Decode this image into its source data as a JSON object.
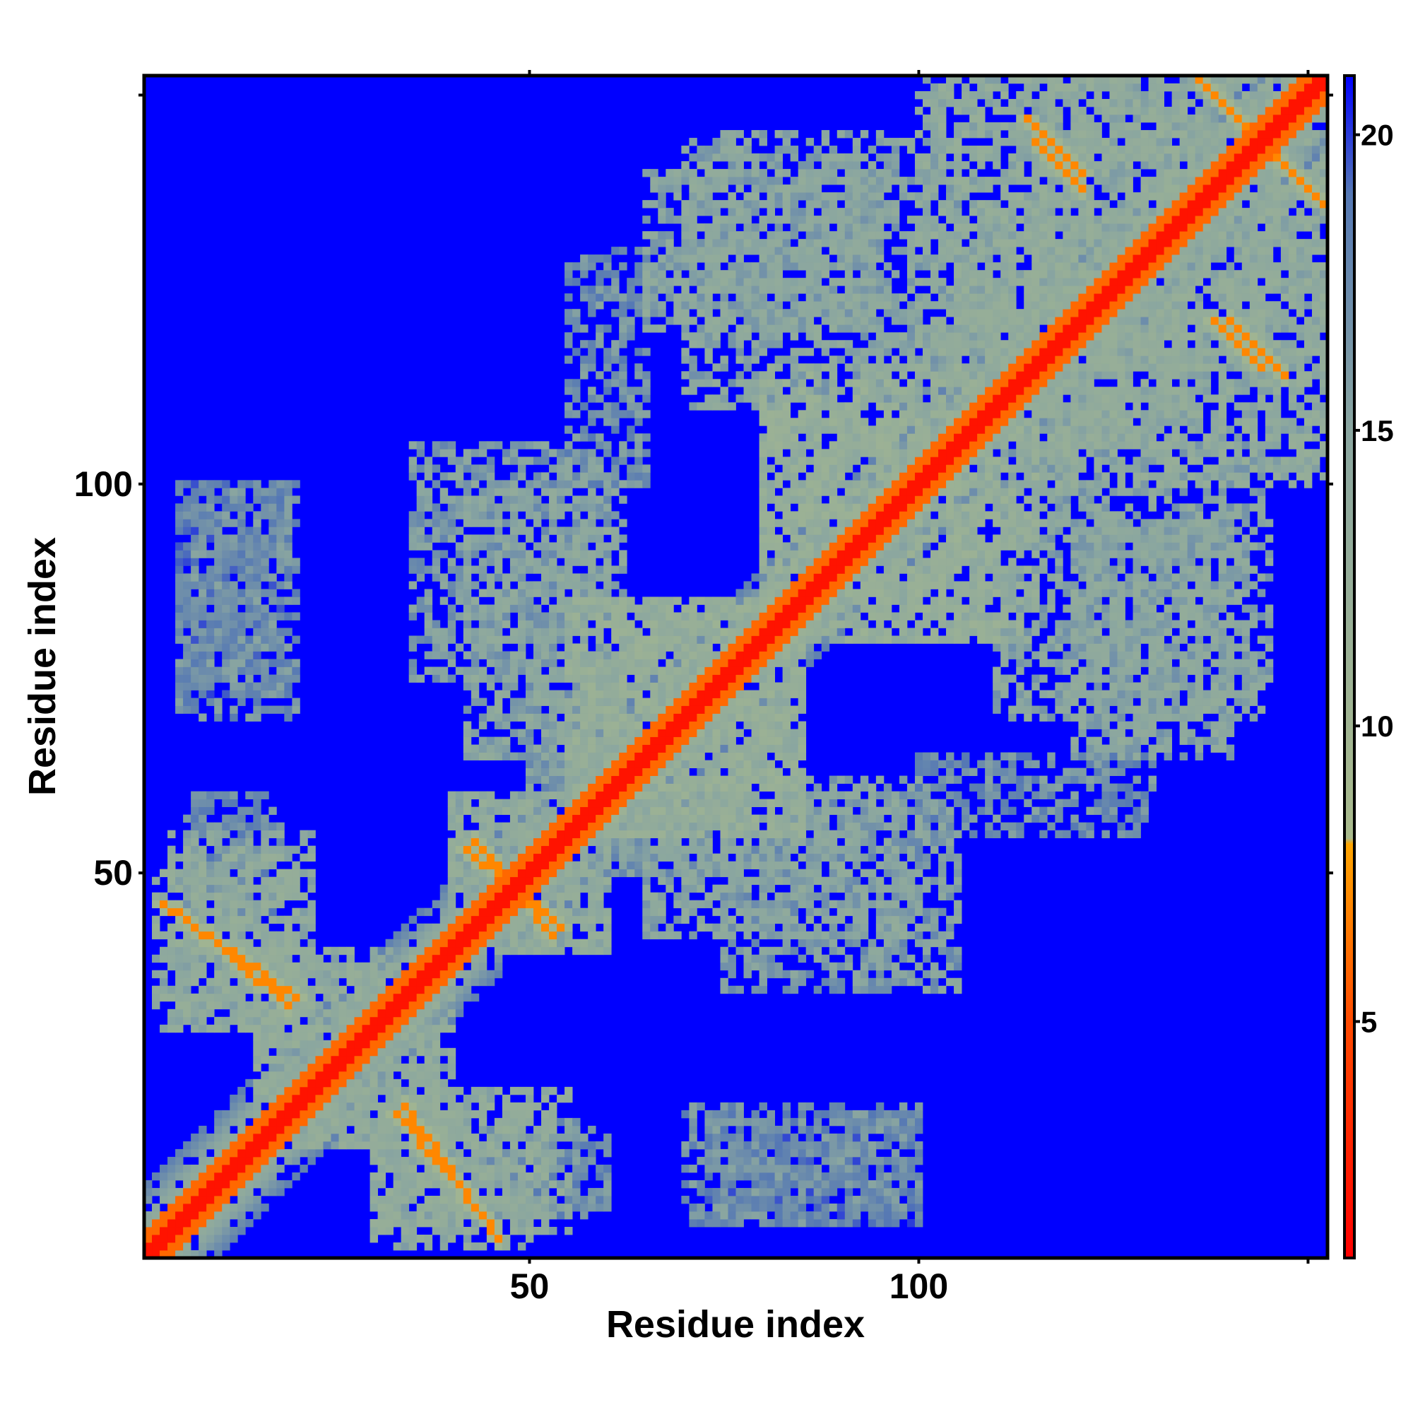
{
  "chart_data": {
    "type": "heatmap",
    "title": "",
    "xlabel": "Residue index",
    "ylabel": "Residue index",
    "n_residues": 152,
    "xlim": [
      1,
      152
    ],
    "ylim": [
      1,
      152
    ],
    "x_ticks": [
      {
        "value": 50,
        "label": "50"
      },
      {
        "value": 100,
        "label": "100"
      },
      {
        "value": 150,
        "label": ""
      }
    ],
    "y_ticks": [
      {
        "value": 50,
        "label": "50"
      },
      {
        "value": 100,
        "label": "100"
      },
      {
        "value": 150,
        "label": ""
      }
    ],
    "colorbar": {
      "range": [
        1,
        21
      ],
      "ticks": [
        {
          "value": 5,
          "label": "5"
        },
        {
          "value": 10,
          "label": "10"
        },
        {
          "value": 15,
          "label": "15"
        },
        {
          "value": 20,
          "label": "20"
        }
      ],
      "stops": [
        {
          "value": 1,
          "color": "#ff0000"
        },
        {
          "value": 5,
          "color": "#ff4a00"
        },
        {
          "value": 8,
          "color": "#ffa500"
        },
        {
          "value": 8.1,
          "color": "#a9ba8c"
        },
        {
          "value": 15,
          "color": "#8aa6a0"
        },
        {
          "value": 19,
          "color": "#5578b4"
        },
        {
          "value": 21,
          "color": "#0000ff"
        }
      ]
    },
    "background_value": 21,
    "background_color": "#0000ff",
    "contact_bands": [
      {
        "from": [
          1,
          1
        ],
        "to": [
          152,
          152
        ],
        "value": 2
      },
      {
        "from": [
          3,
          46
        ],
        "to": [
          20,
          34
        ],
        "value": 7
      },
      {
        "from": [
          33,
          19
        ],
        "to": [
          45,
          5
        ],
        "value": 7
      },
      {
        "from": [
          42,
          53
        ],
        "to": [
          54,
          43
        ],
        "value": 7
      },
      {
        "from": [
          114,
          147
        ],
        "to": [
          121,
          140
        ],
        "value": 7
      },
      {
        "from": [
          137,
          151
        ],
        "to": [
          152,
          136
        ],
        "value": 7
      },
      {
        "from": [
          138,
          121
        ],
        "to": [
          144,
          115
        ],
        "value": 7
      }
    ],
    "contact_regions": [
      {
        "x": [
          4,
          22
        ],
        "y": [
          30,
          55
        ],
        "value": 14
      },
      {
        "x": [
          15,
          40
        ],
        "y": [
          15,
          38
        ],
        "value": 14
      },
      {
        "x": [
          30,
          50
        ],
        "y": [
          2,
          20
        ],
        "value": 14
      },
      {
        "x": [
          45,
          60
        ],
        "y": [
          6,
          18
        ],
        "value": 17
      },
      {
        "x": [
          40,
          60
        ],
        "y": [
          40,
          60
        ],
        "value": 14
      },
      {
        "x": [
          35,
          60
        ],
        "y": [
          75,
          105
        ],
        "value": 16
      },
      {
        "x": [
          50,
          60
        ],
        "y": [
          60,
          75
        ],
        "value": 16
      },
      {
        "x": [
          55,
          85
        ],
        "y": [
          55,
          85
        ],
        "value": 13
      },
      {
        "x": [
          65,
          100
        ],
        "y": [
          42,
          62
        ],
        "value": 15
      },
      {
        "x": [
          70,
          85
        ],
        "y": [
          5,
          20
        ],
        "value": 17
      },
      {
        "x": [
          85,
          100
        ],
        "y": [
          7,
          20
        ],
        "value": 17
      },
      {
        "x": [
          65,
          95
        ],
        "y": [
          120,
          140
        ],
        "value": 15
      },
      {
        "x": [
          80,
          110
        ],
        "y": [
          80,
          115
        ],
        "value": 13
      },
      {
        "x": [
          100,
          130
        ],
        "y": [
          55,
          65
        ],
        "value": 17
      },
      {
        "x": [
          110,
          145
        ],
        "y": [
          70,
          105
        ],
        "value": 15
      },
      {
        "x": [
          100,
          152
        ],
        "y": [
          115,
          152
        ],
        "value": 14
      },
      {
        "x": [
          105,
          125
        ],
        "y": [
          105,
          135
        ],
        "value": 14
      },
      {
        "x": [
          5,
          18
        ],
        "y": [
          73,
          100
        ],
        "value": 18
      }
    ],
    "grid": false,
    "legend": "colorbar-right"
  }
}
